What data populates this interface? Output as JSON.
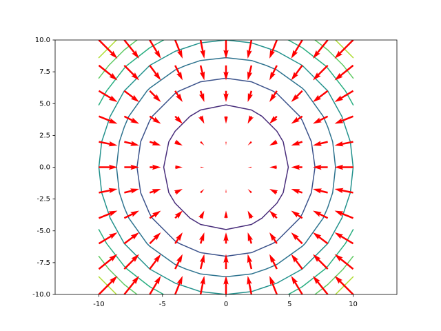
{
  "chart_data": {
    "type": "quiver-contour",
    "x": [
      -10,
      -8,
      -6,
      -4,
      -2,
      0,
      2,
      4,
      6,
      8,
      10
    ],
    "y": [
      -10,
      -8,
      -6,
      -4,
      -2,
      0,
      2,
      4,
      6,
      8,
      10
    ],
    "z": [
      [
        200,
        164,
        136,
        116,
        104,
        100,
        104,
        116,
        136,
        164,
        200
      ],
      [
        164,
        128,
        100,
        80,
        68,
        64,
        68,
        80,
        100,
        128,
        164
      ],
      [
        136,
        100,
        72,
        52,
        40,
        36,
        40,
        52,
        72,
        100,
        136
      ],
      [
        116,
        80,
        52,
        32,
        20,
        16,
        20,
        32,
        52,
        80,
        116
      ],
      [
        104,
        68,
        40,
        20,
        8,
        4,
        8,
        20,
        40,
        68,
        104
      ],
      [
        100,
        64,
        36,
        16,
        4,
        0,
        4,
        16,
        36,
        64,
        100
      ],
      [
        104,
        68,
        40,
        20,
        8,
        4,
        8,
        20,
        40,
        68,
        104
      ],
      [
        116,
        80,
        52,
        32,
        20,
        16,
        20,
        32,
        52,
        80,
        116
      ],
      [
        136,
        100,
        72,
        52,
        40,
        36,
        40,
        52,
        72,
        100,
        136
      ],
      [
        164,
        128,
        100,
        80,
        68,
        64,
        68,
        80,
        100,
        128,
        164
      ],
      [
        200,
        164,
        136,
        116,
        104,
        100,
        104,
        116,
        136,
        164,
        200
      ]
    ],
    "u": [
      [
        10,
        8,
        6,
        4,
        2,
        0,
        -2,
        -4,
        -6,
        -8,
        -10
      ],
      [
        10,
        8,
        6,
        4,
        2,
        0,
        -2,
        -4,
        -6,
        -8,
        -10
      ],
      [
        10,
        8,
        6,
        4,
        2,
        0,
        -2,
        -4,
        -6,
        -8,
        -10
      ],
      [
        10,
        8,
        6,
        4,
        2,
        0,
        -2,
        -4,
        -6,
        -8,
        -10
      ],
      [
        10,
        8,
        6,
        4,
        2,
        0,
        -2,
        -4,
        -6,
        -8,
        -10
      ],
      [
        10,
        8,
        6,
        4,
        2,
        0,
        -2,
        -4,
        -6,
        -8,
        -10
      ],
      [
        10,
        8,
        6,
        4,
        2,
        0,
        -2,
        -4,
        -6,
        -8,
        -10
      ],
      [
        10,
        8,
        6,
        4,
        2,
        0,
        -2,
        -4,
        -6,
        -8,
        -10
      ],
      [
        10,
        8,
        6,
        4,
        2,
        0,
        -2,
        -4,
        -6,
        -8,
        -10
      ],
      [
        10,
        8,
        6,
        4,
        2,
        0,
        -2,
        -4,
        -6,
        -8,
        -10
      ],
      [
        10,
        8,
        6,
        4,
        2,
        0,
        -2,
        -4,
        -6,
        -8,
        -10
      ]
    ],
    "v": [
      [
        10,
        10,
        10,
        10,
        10,
        10,
        10,
        10,
        10,
        10,
        10
      ],
      [
        8,
        8,
        8,
        8,
        8,
        8,
        8,
        8,
        8,
        8,
        8
      ],
      [
        6,
        6,
        6,
        6,
        6,
        6,
        6,
        6,
        6,
        6,
        6
      ],
      [
        4,
        4,
        4,
        4,
        4,
        4,
        4,
        4,
        4,
        4,
        4
      ],
      [
        2,
        2,
        2,
        2,
        2,
        2,
        2,
        2,
        2,
        2,
        2
      ],
      [
        0,
        0,
        0,
        0,
        0,
        0,
        0,
        0,
        0,
        0,
        0
      ],
      [
        -2,
        -2,
        -2,
        -2,
        -2,
        -2,
        -2,
        -2,
        -2,
        -2,
        -2
      ],
      [
        -4,
        -4,
        -4,
        -4,
        -4,
        -4,
        -4,
        -4,
        -4,
        -4,
        -4
      ],
      [
        -6,
        -6,
        -6,
        -6,
        -6,
        -6,
        -6,
        -6,
        -6,
        -6,
        -6
      ],
      [
        -8,
        -8,
        -8,
        -8,
        -8,
        -8,
        -8,
        -8,
        -8,
        -8,
        -8
      ],
      [
        -10,
        -10,
        -10,
        -10,
        -10,
        -10,
        -10,
        -10,
        -10,
        -10,
        -10
      ]
    ],
    "levels": [
      25,
      50,
      75,
      100,
      125,
      150,
      175
    ],
    "level_colors": [
      "#472c7a",
      "#3b528b",
      "#2c728e",
      "#21918c",
      "#28ae80",
      "#5ec962",
      "#addc30"
    ],
    "arrow_color": "#ff0000",
    "xlim": [
      -13.44,
      13.44
    ],
    "ylim": [
      -10,
      10
    ],
    "xticks": [
      -10,
      -5,
      0,
      5,
      10
    ],
    "yticks": [
      {
        "value": -10,
        "label": "-10.0"
      },
      {
        "value": -7.5,
        "label": "-7.5"
      },
      {
        "value": -5,
        "label": "-5.0"
      },
      {
        "value": -2.5,
        "label": "-2.5"
      },
      {
        "value": 0,
        "label": "0.0"
      },
      {
        "value": 2.5,
        "label": "2.5"
      },
      {
        "value": 5,
        "label": "5.0"
      },
      {
        "value": 7.5,
        "label": "7.5"
      },
      {
        "value": 10,
        "label": "10.0"
      }
    ]
  }
}
